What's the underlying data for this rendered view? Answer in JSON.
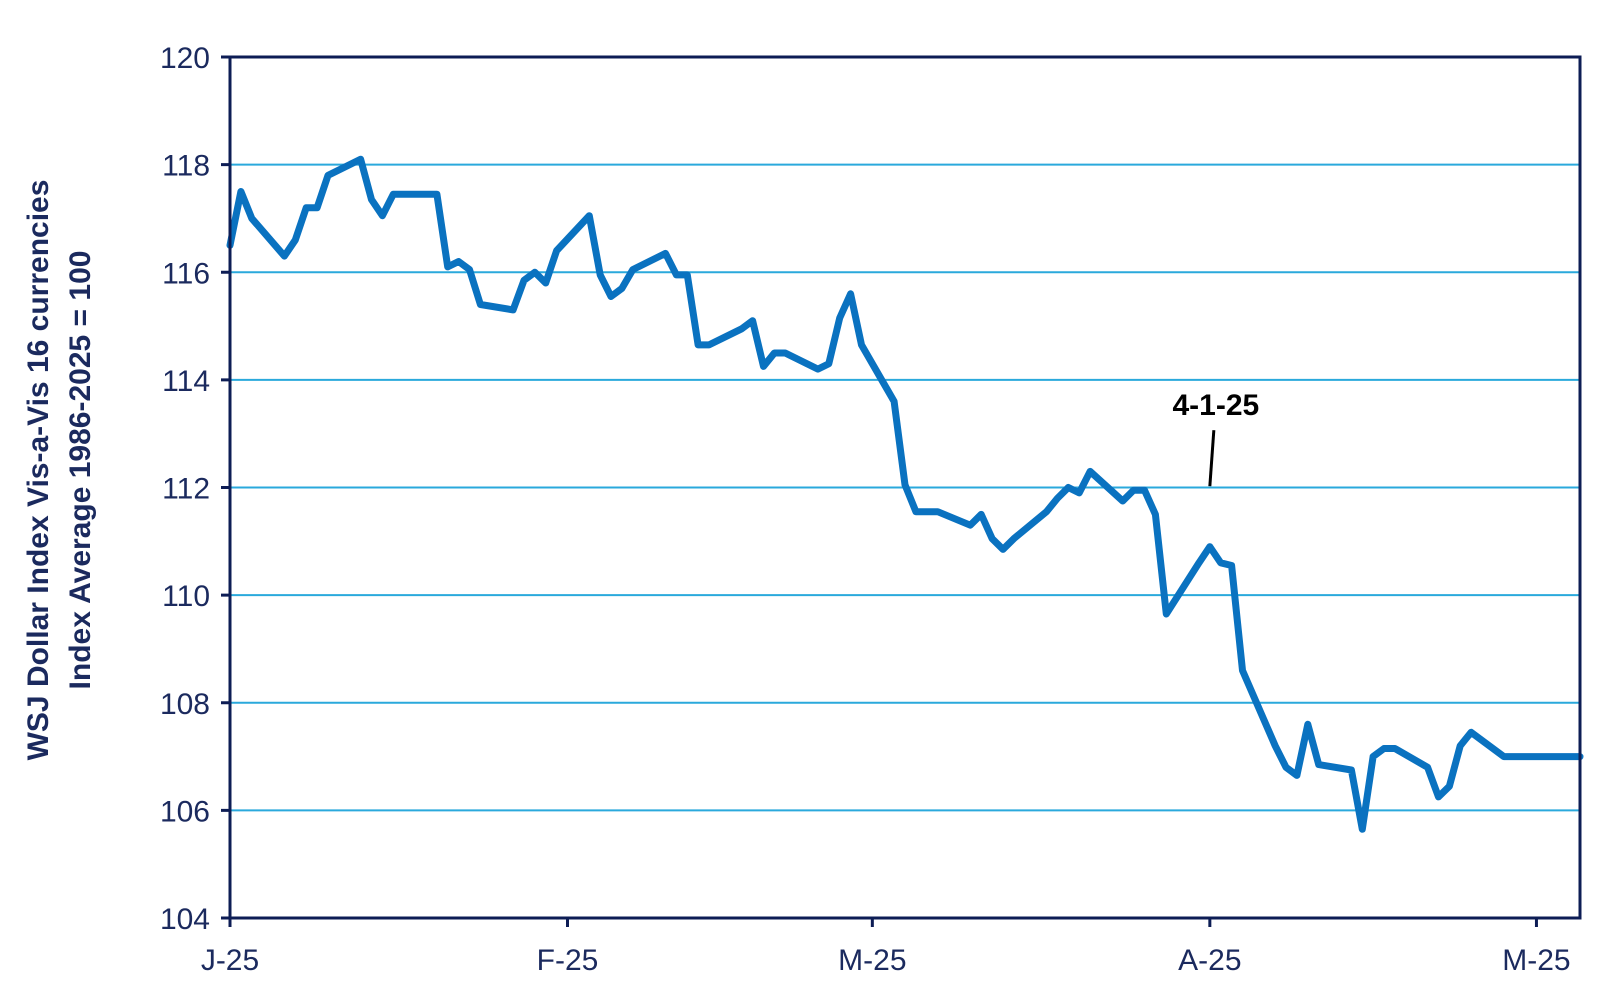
{
  "chart_data": {
    "type": "line",
    "title": "",
    "xlabel": "",
    "ylabel": [
      "WSJ Dollar Index  Vis-a-Vis 16 currencies",
      "Index Average 1986-2025 = 100"
    ],
    "ylim": [
      104,
      120
    ],
    "xlim": [
      "2025-01-01",
      "2025-05-05"
    ],
    "y_ticks": [
      104,
      106,
      108,
      110,
      112,
      114,
      116,
      118,
      120
    ],
    "x_ticks": [
      {
        "label": "J-25",
        "date": "2025-01-01"
      },
      {
        "label": "F-25",
        "date": "2025-02-01"
      },
      {
        "label": "M-25",
        "date": "2025-03-01"
      },
      {
        "label": "A-25",
        "date": "2025-04-01"
      },
      {
        "label": "M-25",
        "date": "2025-05-01"
      }
    ],
    "grid": "horizontal",
    "legend": "none",
    "colors": {
      "line": "#0a72c0",
      "grid": "#2aa9dc",
      "frame": "#0d1d55",
      "text": "#1b2a5e"
    },
    "annotations": [
      {
        "text": "4-1-25",
        "date": "2025-04-01",
        "value": 111.95
      }
    ],
    "series": [
      {
        "x": [
          "2025-01-01",
          "2025-01-02",
          "2025-01-03",
          "2025-01-06",
          "2025-01-07",
          "2025-01-08",
          "2025-01-09",
          "2025-01-10",
          "2025-01-13",
          "2025-01-14",
          "2025-01-15",
          "2025-01-16",
          "2025-01-17",
          "2025-01-20",
          "2025-01-21",
          "2025-01-22",
          "2025-01-23",
          "2025-01-24",
          "2025-01-27",
          "2025-01-28",
          "2025-01-29",
          "2025-01-30",
          "2025-01-31",
          "2025-02-03",
          "2025-02-04",
          "2025-02-05",
          "2025-02-06",
          "2025-02-07",
          "2025-02-10",
          "2025-02-11",
          "2025-02-12",
          "2025-02-13",
          "2025-02-14",
          "2025-02-17",
          "2025-02-18",
          "2025-02-19",
          "2025-02-20",
          "2025-02-21",
          "2025-02-24",
          "2025-02-25",
          "2025-02-26",
          "2025-02-27",
          "2025-02-28",
          "2025-03-03",
          "2025-03-04",
          "2025-03-05",
          "2025-03-06",
          "2025-03-07",
          "2025-03-10",
          "2025-03-11",
          "2025-03-12",
          "2025-03-13",
          "2025-03-14",
          "2025-03-17",
          "2025-03-18",
          "2025-03-19",
          "2025-03-20",
          "2025-03-21",
          "2025-03-24",
          "2025-03-25",
          "2025-03-26",
          "2025-03-27",
          "2025-03-28",
          "2025-03-31",
          "2025-04-01",
          "2025-04-02",
          "2025-04-03",
          "2025-04-04",
          "2025-04-07",
          "2025-04-08",
          "2025-04-09",
          "2025-04-10",
          "2025-04-11",
          "2025-04-14",
          "2025-04-15",
          "2025-04-16",
          "2025-04-17",
          "2025-04-18",
          "2025-04-21",
          "2025-04-22",
          "2025-04-23",
          "2025-04-24",
          "2025-04-25",
          "2025-04-28",
          "2025-04-29",
          "2025-04-30",
          "2025-05-01",
          "2025-05-02",
          "2025-05-05"
        ],
        "values": [
          116.5,
          117.5,
          117.0,
          116.3,
          116.6,
          117.2,
          117.2,
          117.8,
          118.1,
          117.35,
          117.05,
          117.45,
          117.45,
          117.45,
          116.1,
          116.2,
          116.05,
          115.4,
          115.3,
          115.85,
          116.0,
          115.8,
          116.4,
          117.05,
          115.95,
          115.55,
          115.7,
          116.05,
          116.35,
          115.95,
          115.95,
          114.65,
          114.65,
          114.95,
          115.1,
          114.25,
          114.5,
          114.5,
          114.2,
          114.3,
          115.15,
          115.6,
          114.65,
          113.6,
          112.05,
          111.55,
          111.55,
          111.55,
          111.3,
          111.5,
          111.05,
          110.85,
          111.05,
          111.55,
          111.8,
          112.0,
          111.9,
          112.3,
          111.75,
          111.95,
          111.95,
          111.5,
          109.65,
          110.6,
          110.9,
          110.6,
          110.55,
          108.6,
          107.2,
          106.8,
          106.65,
          107.6,
          106.85,
          106.75,
          105.65,
          107.0,
          107.15,
          107.15,
          106.8,
          106.25,
          106.45,
          107.2,
          107.45,
          107.0,
          107.0,
          107.0,
          107.0,
          107.0,
          107.0
        ]
      }
    ]
  }
}
